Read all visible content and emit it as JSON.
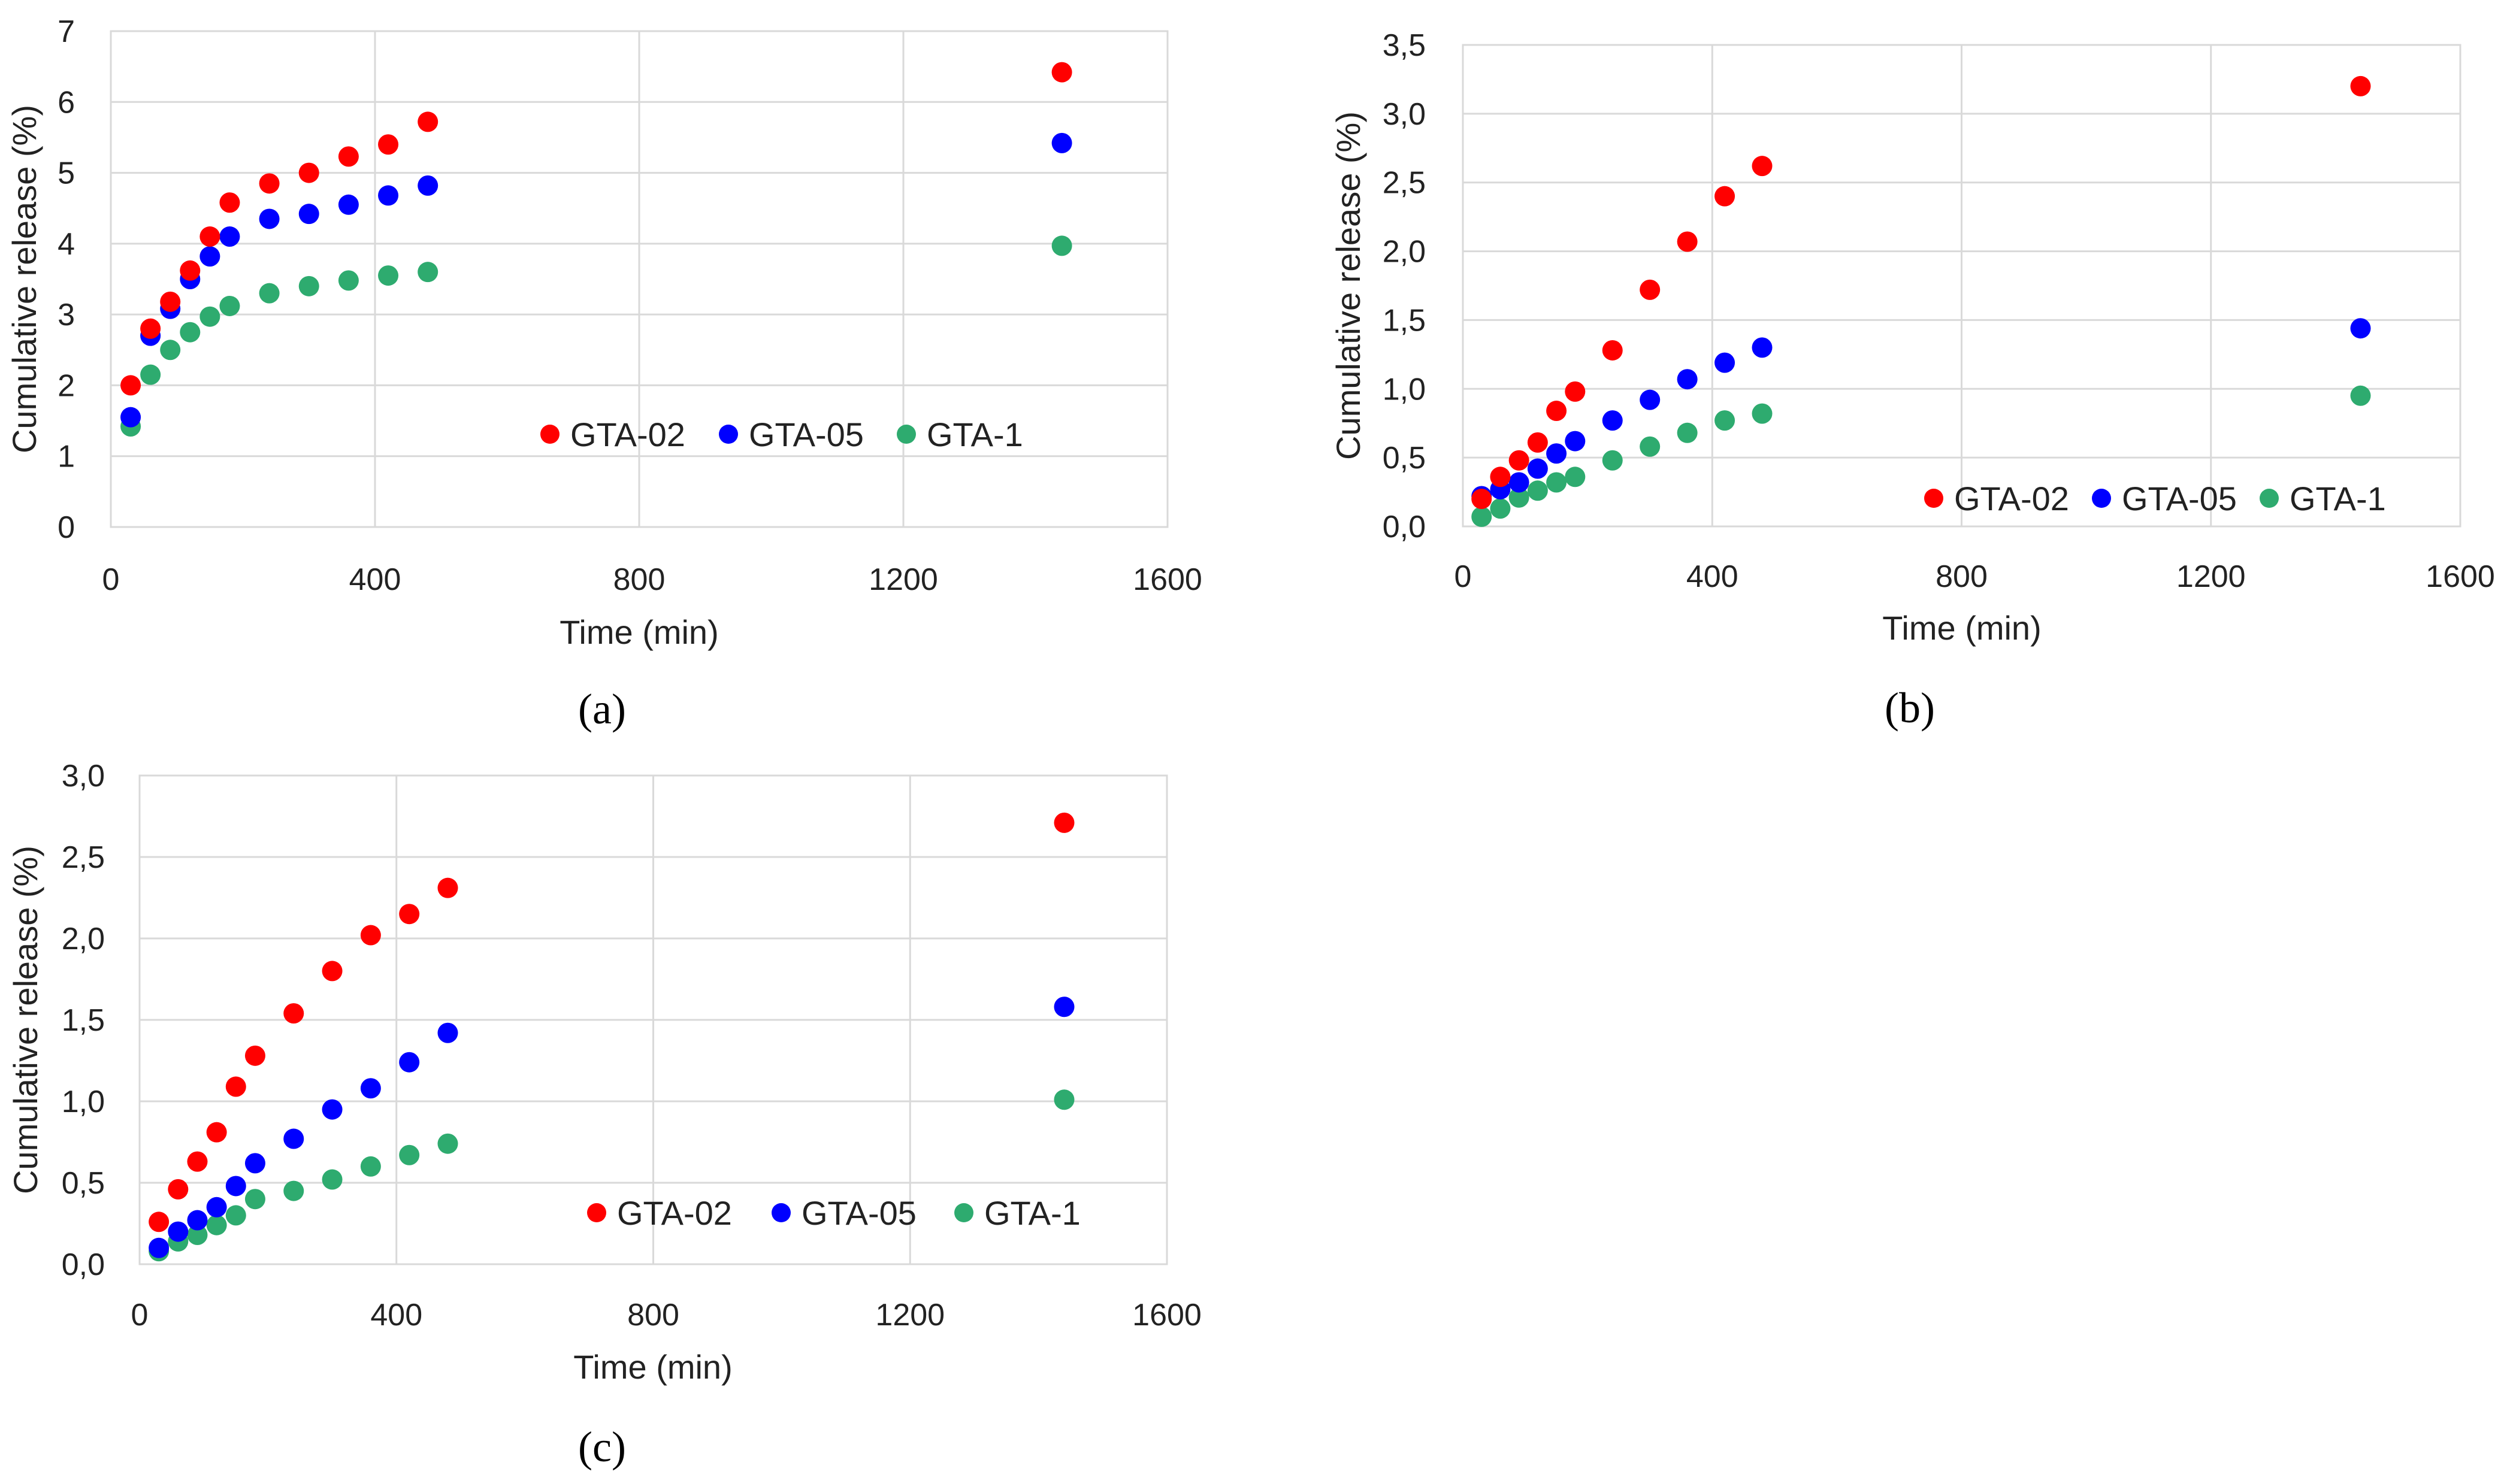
{
  "chart_data": [
    {
      "type": "scatter",
      "panel_label": "(a)",
      "xlabel": "Time (min)",
      "ylabel": "Cumulative release (%)",
      "xlim": [
        0,
        1600
      ],
      "ylim": [
        0,
        7
      ],
      "x_ticks": [
        "0",
        "400",
        "800",
        "1200",
        "1600"
      ],
      "y_ticks": [
        "0",
        "1",
        "2",
        "3",
        "4",
        "5",
        "6",
        "7"
      ],
      "grid": true,
      "legend_position": "center-right",
      "x": [
        30,
        60,
        90,
        120,
        150,
        180,
        240,
        300,
        360,
        420,
        480,
        1440
      ],
      "series": [
        {
          "name": "GTA-02",
          "color": "#ff0000",
          "values": [
            2.0,
            2.8,
            3.18,
            3.62,
            4.1,
            4.58,
            4.85,
            5.0,
            5.23,
            5.4,
            5.72,
            6.42
          ]
        },
        {
          "name": "GTA-05",
          "color": "#0000ff",
          "values": [
            1.55,
            2.7,
            3.08,
            3.5,
            3.82,
            4.1,
            4.35,
            4.42,
            4.55,
            4.68,
            4.82,
            5.42
          ]
        },
        {
          "name": "GTA-1",
          "color": "#2eab6f",
          "values": [
            1.42,
            2.15,
            2.5,
            2.75,
            2.97,
            3.12,
            3.3,
            3.4,
            3.48,
            3.55,
            3.6,
            3.97
          ]
        }
      ]
    },
    {
      "type": "scatter",
      "panel_label": "(b)",
      "xlabel": "Time (min)",
      "ylabel": "Cumulative release (%)",
      "xlim": [
        0,
        1600
      ],
      "ylim": [
        0,
        3.5
      ],
      "x_ticks": [
        "0",
        "400",
        "800",
        "1200",
        "1600"
      ],
      "y_ticks": [
        "0,0",
        "0,5",
        "1,0",
        "1,5",
        "2,0",
        "2,5",
        "3,0",
        "3,5"
      ],
      "grid": true,
      "legend_position": "bottom-right",
      "x": [
        30,
        60,
        90,
        120,
        150,
        180,
        240,
        300,
        360,
        420,
        480,
        1440
      ],
      "series": [
        {
          "name": "GTA-02",
          "color": "#ff0000",
          "values": [
            0.2,
            0.36,
            0.48,
            0.61,
            0.84,
            0.98,
            1.28,
            1.72,
            2.07,
            2.4,
            2.62,
            3.2
          ]
        },
        {
          "name": "GTA-05",
          "color": "#0000ff",
          "values": [
            0.22,
            0.27,
            0.32,
            0.42,
            0.53,
            0.62,
            0.77,
            0.92,
            1.07,
            1.19,
            1.3,
            1.44
          ]
        },
        {
          "name": "GTA-1",
          "color": "#2eab6f",
          "values": [
            0.07,
            0.13,
            0.21,
            0.26,
            0.32,
            0.36,
            0.48,
            0.58,
            0.68,
            0.77,
            0.82,
            0.95
          ]
        }
      ]
    },
    {
      "type": "scatter",
      "panel_label": "(c)",
      "xlabel": "Time (min)",
      "ylabel": "Cumulative release (%)",
      "xlim": [
        0,
        1600
      ],
      "ylim": [
        0,
        3.0
      ],
      "x_ticks": [
        "0",
        "400",
        "800",
        "1200",
        "1600"
      ],
      "y_ticks": [
        "0,0",
        "0,5",
        "1,0",
        "1,5",
        "2,0",
        "2,5",
        "3,0"
      ],
      "grid": true,
      "legend_position": "bottom-right",
      "x": [
        30,
        60,
        90,
        120,
        150,
        180,
        240,
        300,
        360,
        420,
        480,
        1440
      ],
      "series": [
        {
          "name": "GTA-02",
          "color": "#ff0000",
          "values": [
            0.26,
            0.46,
            0.63,
            0.81,
            1.09,
            1.28,
            1.54,
            1.8,
            2.02,
            2.15,
            2.31,
            2.71
          ]
        },
        {
          "name": "GTA-05",
          "color": "#0000ff",
          "values": [
            0.1,
            0.2,
            0.27,
            0.35,
            0.48,
            0.62,
            0.77,
            0.95,
            1.08,
            1.24,
            1.42,
            1.58
          ]
        },
        {
          "name": "GTA-1",
          "color": "#2eab6f",
          "values": [
            0.08,
            0.14,
            0.18,
            0.24,
            0.3,
            0.4,
            0.45,
            0.52,
            0.6,
            0.67,
            0.74,
            1.01
          ]
        }
      ]
    }
  ]
}
